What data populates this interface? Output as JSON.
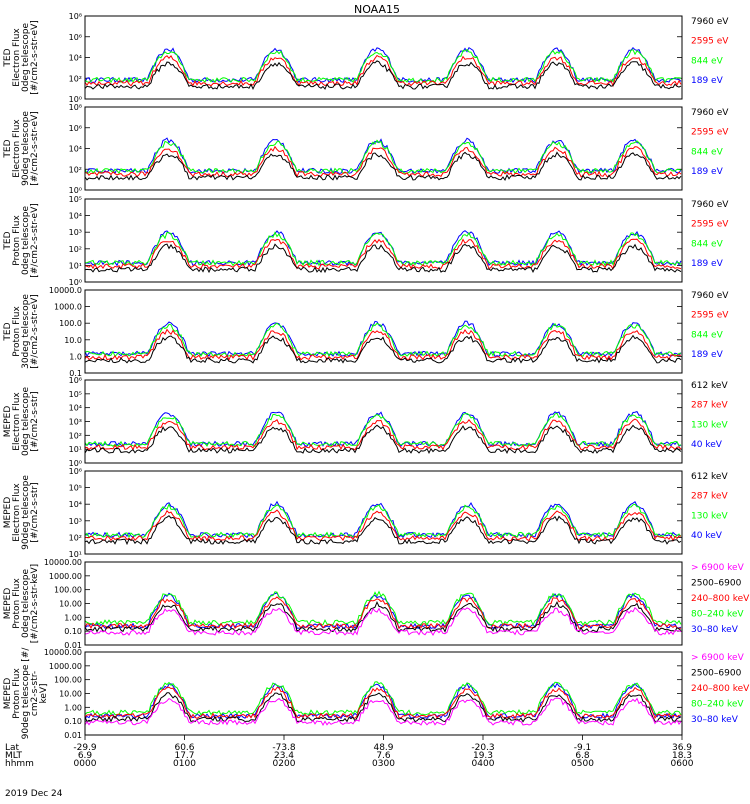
{
  "title": "NOAA15",
  "date_label": "2019 Dec 24",
  "colors": {
    "black": "#000000",
    "red": "#ff0000",
    "green": "#00ff00",
    "blue": "#0000ff",
    "magenta": "#ff00ff"
  },
  "time_axis": {
    "row_labels": [
      "Lat",
      "MLT",
      "hhmm"
    ],
    "ticks": [
      {
        "lat": "-29.9",
        "mlt": "6.9",
        "hhmm": "0000"
      },
      {
        "lat": "60.6",
        "mlt": "17.7",
        "hhmm": "0100"
      },
      {
        "lat": "-73.8",
        "mlt": "23.4",
        "hhmm": "0200"
      },
      {
        "lat": "48.9",
        "mlt": "7.6",
        "hhmm": "0300"
      },
      {
        "lat": "-20.3",
        "mlt": "19.3",
        "hhmm": "0400"
      },
      {
        "lat": "-9.1",
        "mlt": "6.8",
        "hhmm": "0500"
      },
      {
        "lat": "36.9",
        "mlt": "18.3",
        "hhmm": "0600"
      }
    ]
  },
  "chart_data": [
    {
      "type": "line",
      "ylabel_lines": [
        "TED",
        "Electron Flux",
        "0deg telescope",
        "[#/cm2-s-str-eV]"
      ],
      "scale": "log",
      "ylim": [
        1,
        100000000
      ],
      "ytick_labels": [
        "10⁰",
        "10²",
        "10⁴",
        "10⁶",
        "10⁸"
      ],
      "legend": [
        {
          "label": "7960 eV",
          "color": "#000000"
        },
        {
          "label": "2595 eV",
          "color": "#ff0000"
        },
        {
          "label": "844 eV",
          "color": "#00ff00"
        },
        {
          "label": "189 eV",
          "color": "#0000ff"
        }
      ]
    },
    {
      "type": "line",
      "ylabel_lines": [
        "TED",
        "Electron Flux",
        "90deg telescope",
        "[#/cm2-s-str-eV]"
      ],
      "scale": "log",
      "ylim": [
        1,
        100000000
      ],
      "ytick_labels": [
        "10⁰",
        "10²",
        "10⁴",
        "10⁶",
        "10⁸"
      ],
      "legend": [
        {
          "label": "7960 eV",
          "color": "#000000"
        },
        {
          "label": "2595 eV",
          "color": "#ff0000"
        },
        {
          "label": "844 eV",
          "color": "#00ff00"
        },
        {
          "label": "189 eV",
          "color": "#0000ff"
        }
      ]
    },
    {
      "type": "line",
      "ylabel_lines": [
        "TED",
        "Proton Flux",
        "0deg telescope",
        "[#/cm2-s-str-eV]"
      ],
      "scale": "log",
      "ylim": [
        1,
        100000
      ],
      "ytick_labels": [
        "10⁰",
        "10¹",
        "10²",
        "10³",
        "10⁴",
        "10⁵"
      ],
      "legend": [
        {
          "label": "7960 eV",
          "color": "#000000"
        },
        {
          "label": "2595 eV",
          "color": "#ff0000"
        },
        {
          "label": "844 eV",
          "color": "#00ff00"
        },
        {
          "label": "189 eV",
          "color": "#0000ff"
        }
      ]
    },
    {
      "type": "line",
      "ylabel_lines": [
        "TED",
        "Proton Flux",
        "30deg telescope",
        "[#/cm2-s-str-eV]"
      ],
      "scale": "log",
      "ylim": [
        0.1,
        10000
      ],
      "ytick_labels": [
        "0.1",
        "1.0",
        "10.0",
        "100.0",
        "1000.0",
        "10000.0"
      ],
      "legend": [
        {
          "label": "7960 eV",
          "color": "#000000"
        },
        {
          "label": "2595 eV",
          "color": "#ff0000"
        },
        {
          "label": "844 eV",
          "color": "#00ff00"
        },
        {
          "label": "189 eV",
          "color": "#0000ff"
        }
      ]
    },
    {
      "type": "line",
      "ylabel_lines": [
        "MEPED",
        "Electron Flux",
        "0deg telescope",
        "[#/cm2-s-str]"
      ],
      "scale": "log",
      "ylim": [
        1,
        1000000
      ],
      "ytick_labels": [
        "10⁰",
        "10¹",
        "10²",
        "10³",
        "10⁴",
        "10⁵",
        "10⁶"
      ],
      "legend": [
        {
          "label": "612 keV",
          "color": "#000000"
        },
        {
          "label": "287 keV",
          "color": "#ff0000"
        },
        {
          "label": "130 keV",
          "color": "#00ff00"
        },
        {
          "label": "40 keV",
          "color": "#0000ff"
        }
      ]
    },
    {
      "type": "line",
      "ylabel_lines": [
        "MEPED",
        "Electron Flux",
        "90deg telescope",
        "[#/cm2-s-str]"
      ],
      "scale": "log",
      "ylim": [
        10,
        1000000
      ],
      "ytick_labels": [
        "10¹",
        "10²",
        "10³",
        "10⁴",
        "10⁵",
        "10⁶"
      ],
      "legend": [
        {
          "label": "612 keV",
          "color": "#000000"
        },
        {
          "label": "287 keV",
          "color": "#ff0000"
        },
        {
          "label": "130 keV",
          "color": "#00ff00"
        },
        {
          "label": "40 keV",
          "color": "#0000ff"
        }
      ]
    },
    {
      "type": "line",
      "ylabel_lines": [
        "MEPED",
        "Proton Flux",
        "0deg telescope",
        "[#/cm2-s-str-keV]"
      ],
      "scale": "log",
      "ylim": [
        0.01,
        10000
      ],
      "ytick_labels": [
        "0.01",
        "0.10",
        "1.00",
        "10.00",
        "100.00",
        "1000.00",
        "10000.00"
      ],
      "legend": [
        {
          "label": "> 6900 keV",
          "color": "#ff00ff"
        },
        {
          "label": "2500–6900",
          "color": "#000000"
        },
        {
          "label": "240–800 keV",
          "color": "#ff0000"
        },
        {
          "label": "80–240 keV",
          "color": "#00ff00"
        },
        {
          "label": "30–80 keV",
          "color": "#0000ff"
        }
      ]
    },
    {
      "type": "line",
      "ylabel_lines": [
        "MEPED",
        "Proton Flux",
        "90deg telescope [#/",
        "cm2-s-str-",
        "keV]"
      ],
      "scale": "log",
      "ylim": [
        0.01,
        10000
      ],
      "ytick_labels": [
        "0.01",
        "0.10",
        "1.00",
        "10.00",
        "100.00",
        "1000.00",
        "10000.00"
      ],
      "legend": [
        {
          "label": "> 6900 keV",
          "color": "#ff00ff"
        },
        {
          "label": "2500–6900",
          "color": "#000000"
        },
        {
          "label": "240–800 keV",
          "color": "#ff0000"
        },
        {
          "label": "80–240 keV",
          "color": "#00ff00"
        },
        {
          "label": "30–80 keV",
          "color": "#0000ff"
        }
      ]
    }
  ]
}
